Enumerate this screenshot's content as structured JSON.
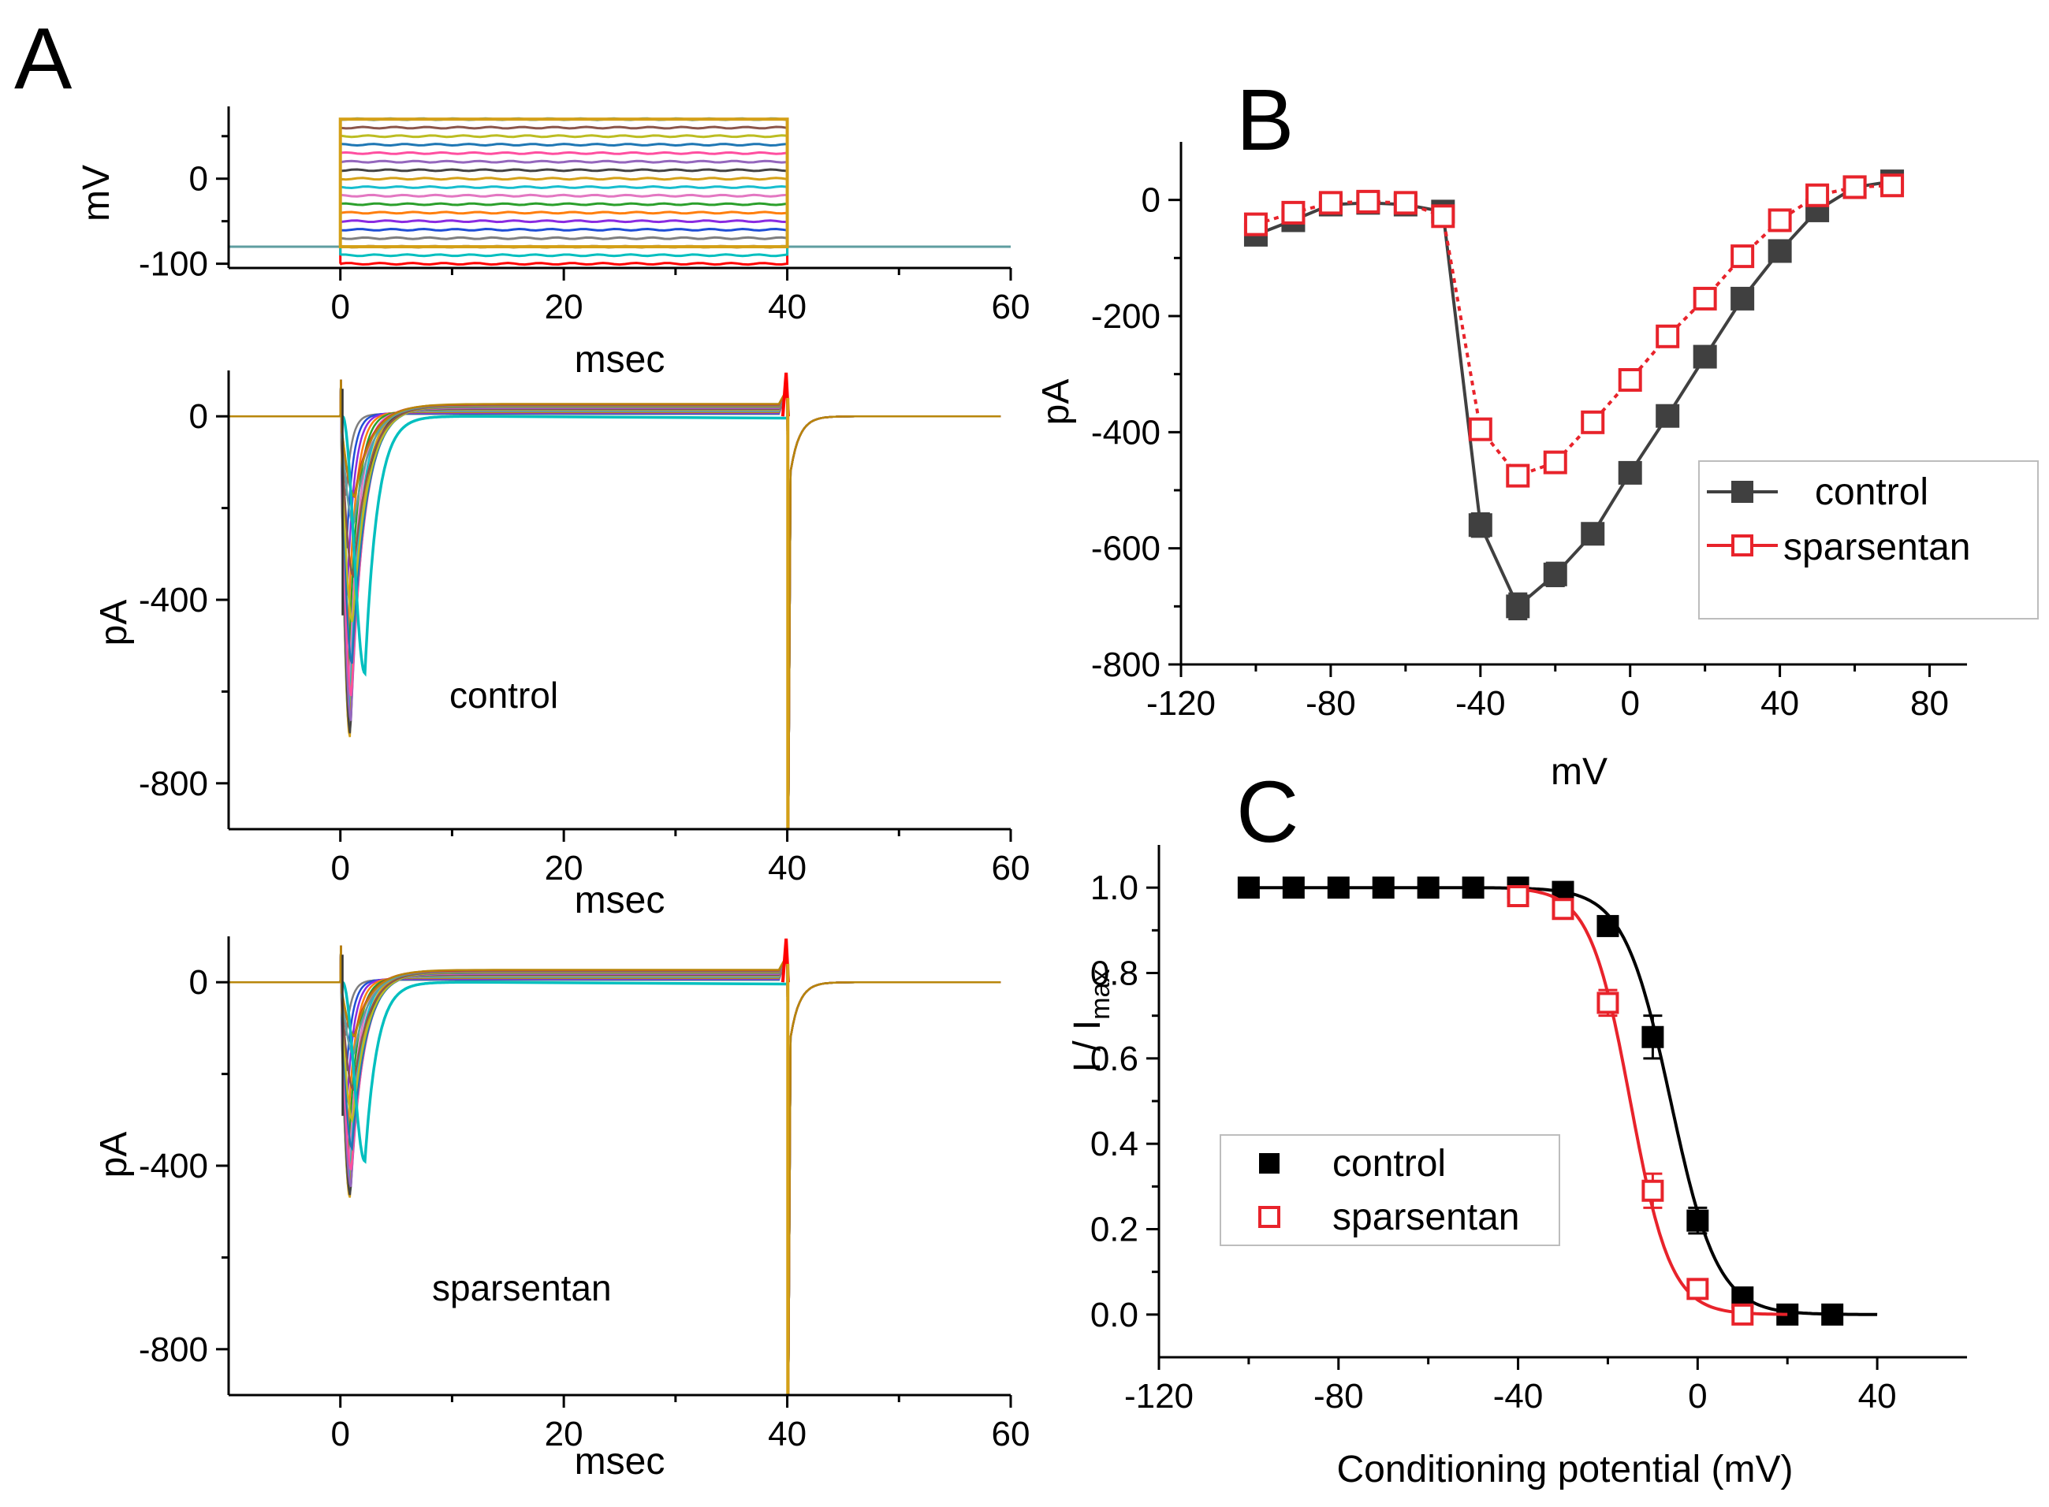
{
  "panel_labels": {
    "A": "A",
    "B": "B",
    "C": "C"
  },
  "colors": {
    "axis": "#000000",
    "control_B": "#404040",
    "control_C": "#000000",
    "sparsentan": "#e8232b",
    "trace_palette": [
      "#ff0000",
      "#00bfbf",
      "#b08d57",
      "#7f7f7f",
      "#1f4fd6",
      "#8a2be2",
      "#ff7f0e",
      "#2ca02c",
      "#e377c2",
      "#17becf",
      "#d4a017",
      "#444444",
      "#9467bd",
      "#ff4fa0",
      "#1f77b4",
      "#bcbd22",
      "#8c564b",
      "#5f9ea0",
      "#d62728",
      "#b8860b"
    ]
  },
  "chart_data": [
    {
      "id": "A-voltage",
      "type": "line",
      "title": "",
      "xlabel": "msec",
      "ylabel": "mV",
      "xlim": [
        -10,
        60
      ],
      "ylim": [
        -105,
        85
      ],
      "xticks": [
        0,
        20,
        40,
        60
      ],
      "yticks": [
        -100,
        0
      ],
      "protocol": {
        "holding_mV": -80,
        "step_start_ms": 0,
        "step_end_ms": 40,
        "step_levels_mV": [
          -100,
          -90,
          -80,
          -70,
          -60,
          -50,
          -40,
          -30,
          -20,
          -10,
          0,
          10,
          20,
          30,
          40,
          50,
          60,
          70
        ]
      }
    },
    {
      "id": "A-control",
      "type": "line",
      "title": "",
      "annotation": "control",
      "xlabel": "msec",
      "ylabel": "pA",
      "xlim": [
        -10,
        60
      ],
      "ylim": [
        -900,
        100
      ],
      "xticks": [
        0,
        20,
        40,
        60
      ],
      "yticks": [
        -800,
        -400,
        0
      ],
      "traces": {
        "peak_min_pA": -700,
        "peak_time_ms": 1.2,
        "slow_trace_peak_pA": -560,
        "slow_trace_peak_time_ms": 2.2,
        "tail_time_ms": 40
      }
    },
    {
      "id": "A-sparsentan",
      "type": "line",
      "title": "",
      "annotation": "sparsentan",
      "xlabel": "msec",
      "ylabel": "pA",
      "xlim": [
        -10,
        60
      ],
      "ylim": [
        -900,
        100
      ],
      "xticks": [
        0,
        20,
        40,
        60
      ],
      "yticks": [
        -800,
        -400,
        0
      ],
      "traces": {
        "peak_min_pA": -470,
        "peak_time_ms": 1.2,
        "slow_trace_peak_pA": -390,
        "slow_trace_peak_time_ms": 2.2,
        "tail_time_ms": 40
      }
    },
    {
      "id": "B",
      "type": "line",
      "title": "",
      "xlabel": "mV",
      "ylabel": "pA",
      "xlim": [
        -120,
        90
      ],
      "ylim": [
        -800,
        100
      ],
      "xticks": [
        -120,
        -80,
        -40,
        0,
        40,
        80
      ],
      "yticks": [
        -800,
        -600,
        -400,
        -200,
        0
      ],
      "legend": "right",
      "x": [
        -100,
        -90,
        -80,
        -70,
        -60,
        -50,
        -40,
        -30,
        -20,
        -10,
        0,
        10,
        20,
        30,
        40,
        50,
        60,
        70
      ],
      "series": [
        {
          "name": "control",
          "marker": "filled-square",
          "values": [
            -60,
            -35,
            -8,
            -5,
            -8,
            -20,
            -560,
            -700,
            -645,
            -575,
            -470,
            -372,
            -270,
            -170,
            -88,
            -18,
            22,
            32
          ],
          "errors": [
            8,
            6,
            4,
            4,
            4,
            6,
            20,
            22,
            20,
            18,
            16,
            14,
            12,
            10,
            8,
            6,
            6,
            6
          ]
        },
        {
          "name": "sparsentan",
          "marker": "open-square",
          "values": [
            -42,
            -22,
            -5,
            -3,
            -5,
            -28,
            -395,
            -475,
            -452,
            -383,
            -310,
            -235,
            -170,
            -97,
            -35,
            8,
            22,
            25
          ],
          "errors": [
            6,
            5,
            4,
            4,
            4,
            6,
            12,
            14,
            12,
            10,
            10,
            8,
            8,
            8,
            6,
            6,
            6,
            6
          ]
        }
      ]
    },
    {
      "id": "C",
      "type": "scatter",
      "title": "",
      "xlabel": "Conditioning potential (mV)",
      "ylabel_main": "I / I",
      "ylabel_sub": "max",
      "xlim": [
        -120,
        60
      ],
      "ylim": [
        -0.1,
        1.1
      ],
      "xticks": [
        -120,
        -80,
        -40,
        0,
        40
      ],
      "yticks": [
        0.0,
        0.2,
        0.4,
        0.6,
        0.8,
        1.0
      ],
      "ytick_labels": [
        "0.0",
        "0.2",
        "0.4",
        "0.6",
        "0.8",
        "1.0"
      ],
      "legend": "left",
      "series": [
        {
          "name": "control",
          "marker": "filled-square",
          "x": [
            -100,
            -90,
            -80,
            -70,
            -60,
            -50,
            -40,
            -30,
            -20,
            -10,
            0,
            10,
            20,
            30
          ],
          "values": [
            1.0,
            1.0,
            1.0,
            1.0,
            1.0,
            1.0,
            1.0,
            0.99,
            0.91,
            0.65,
            0.22,
            0.04,
            0.0,
            0.0
          ],
          "errors": [
            0,
            0,
            0,
            0,
            0,
            0,
            0,
            0.01,
            0.02,
            0.05,
            0.03,
            0.01,
            0,
            0
          ],
          "fit": {
            "v_half": -6,
            "k": 5.2
          }
        },
        {
          "name": "sparsentan",
          "marker": "open-square",
          "x": [
            -40,
            -30,
            -20,
            -10,
            0,
            10
          ],
          "values": [
            0.98,
            0.95,
            0.73,
            0.29,
            0.06,
            0.0
          ],
          "errors": [
            0.01,
            0.01,
            0.03,
            0.04,
            0.01,
            0.0
          ],
          "fit": {
            "v_half": -15,
            "k": 4.5
          }
        }
      ]
    }
  ]
}
